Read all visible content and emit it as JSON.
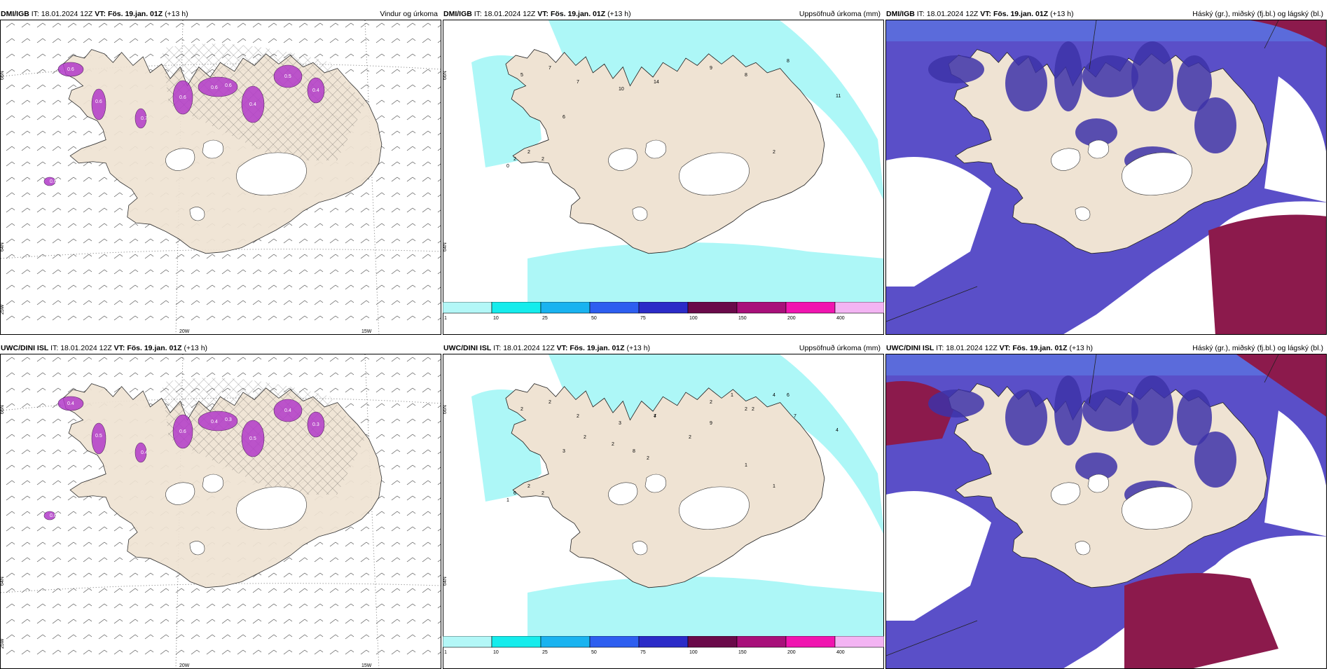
{
  "panels": [
    {
      "id": "dmi-wind",
      "model": "DMI/IGB",
      "it_label": "IT:",
      "it_value": "18.01.2024 12Z",
      "vt_label": "VT:",
      "vt_value": "Fös. 19.jan. 01Z",
      "lead": "(+13 h)",
      "product": "Vindur og úrkoma",
      "lat_labels": [
        "66N",
        "64N",
        "25W"
      ],
      "lon_labels": [
        "20W",
        "15W"
      ],
      "precip_labels": [
        "0.6",
        "0.6",
        "0.6",
        "0.6",
        "0.6",
        "0.4",
        "0.5",
        "0.4",
        "0.6",
        "0.7",
        "0.9"
      ]
    },
    {
      "id": "dmi-precip",
      "model": "DMI/IGB",
      "it_label": "IT:",
      "it_value": "18.01.2024 12Z",
      "vt_label": "VT:",
      "vt_value": "Fös. 19.jan. 01Z",
      "lead": "(+13 h)",
      "product": "Uppsöfnuð úrkoma (mm)",
      "lat_labels": [
        "66N",
        "64N"
      ],
      "values": [
        "5",
        "7",
        "7",
        "6",
        "10",
        "14",
        "9",
        "8",
        "8",
        "11",
        "2",
        "2",
        "2",
        "2",
        "0"
      ]
    },
    {
      "id": "dmi-cloud",
      "model": "DMI/IGB",
      "it_label": "IT:",
      "it_value": "18.01.2024 12Z",
      "vt_label": "VT:",
      "vt_value": "Fös. 19.jan. 01Z",
      "lead": "(+13 h)",
      "product": "Háský (gr.), miðský (fj.bl.) og lágský (bl.)"
    },
    {
      "id": "uwc-wind",
      "model": "UWC/DINI ISL",
      "it_label": "IT:",
      "it_value": "18.01.2024 12Z",
      "vt_label": "VT:",
      "vt_value": "Fös. 19.jan. 01Z",
      "lead": "(+13 h)",
      "product": "",
      "lat_labels": [
        "66N",
        "64N",
        "25W"
      ],
      "lon_labels": [
        "20W",
        "15W"
      ],
      "precip_labels": [
        "0.4",
        "0.5",
        "0.6",
        "0.4",
        "0.3",
        "0.5",
        "0.4",
        "0.3",
        "0.6",
        "0.4",
        "0.6",
        "0.3"
      ]
    },
    {
      "id": "uwc-precip",
      "model": "UWC/DINI ISL",
      "it_label": "IT:",
      "it_value": "18.01.2024 12Z",
      "vt_label": "VT:",
      "vt_value": "Fös. 19.jan. 01Z",
      "lead": "(+13 h)",
      "product": "Uppsöfnuð úrkoma (mm)",
      "lat_labels": [
        "66N",
        "64N"
      ],
      "values": [
        "2",
        "2",
        "2",
        "3",
        "3",
        "7",
        "2",
        "2",
        "6",
        "4",
        "6",
        "2",
        "2",
        "1",
        "1",
        "2",
        "2",
        "8",
        "2",
        "4",
        "2",
        "9",
        "1",
        "2",
        "4",
        "7",
        "1"
      ]
    },
    {
      "id": "uwc-cloud",
      "model": "UWC/DINI ISL",
      "it_label": "IT:",
      "it_value": "18.01.2024 12Z",
      "vt_label": "VT:",
      "vt_value": "Fös. 19.jan. 01Z",
      "lead": "(+13 h)",
      "product": "Háský (gr.), miðský (fj.bl.) og lágský (bl.)"
    }
  ],
  "precip_legend": {
    "ticks": [
      "1",
      "10",
      "25",
      "50",
      "75",
      "100",
      "150",
      "200",
      "400"
    ],
    "colors": [
      "#b3f7f7",
      "#15ecec",
      "#19b3f0",
      "#2d5ef0",
      "#2b2bc8",
      "#6a0a4a",
      "#a8107a",
      "#f015b0",
      "#f3b4f3"
    ]
  },
  "colors": {
    "land": "#efe3d3",
    "precip_light": "#adf7f7",
    "precip_mid": "#19b3f0",
    "low_cloud": "#5a4fc8",
    "low_cloud_dark": "#3d33a8",
    "mid_cloud": "#5b7fe8",
    "light_cloud": "#8fd8f5",
    "high_cloud": "#8c1a4c",
    "wind_precip": "#b23ac9"
  }
}
